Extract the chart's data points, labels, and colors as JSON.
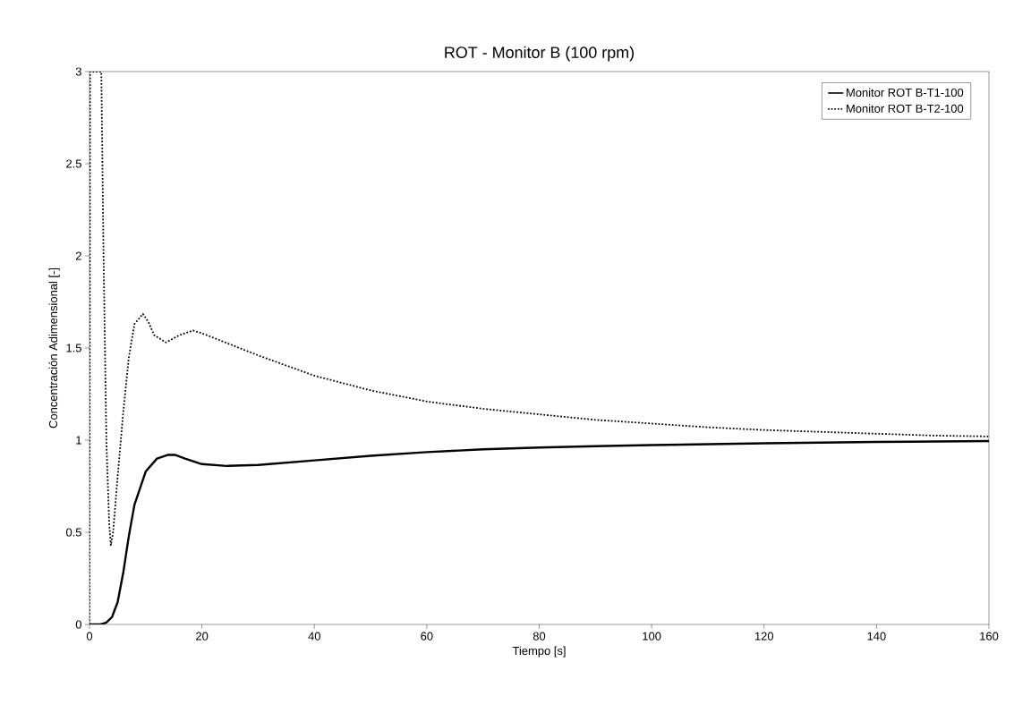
{
  "chart_data": {
    "type": "line",
    "title": "ROT - Monitor B (100 rpm)",
    "xlabel": "Tiempo [s]",
    "ylabel": "Concentración Adimensional [-]",
    "xlim": [
      0,
      160
    ],
    "ylim": [
      0,
      3
    ],
    "xticks": [
      0,
      20,
      40,
      60,
      80,
      100,
      120,
      140,
      160
    ],
    "yticks": [
      0,
      0.5,
      1,
      1.5,
      2,
      2.5,
      3
    ],
    "grid": false,
    "legend": "top right",
    "marker": "none",
    "series": [
      {
        "name": "Monitor ROT B-T1-100",
        "color": "#000000",
        "line_style": "solid",
        "x": [
          0,
          2,
          3,
          4,
          5,
          6,
          7,
          8,
          10,
          12,
          14,
          15.2,
          17,
          20,
          24.4,
          30,
          40,
          50,
          60,
          70,
          80,
          90,
          100,
          120,
          140,
          160
        ],
        "values": [
          0,
          0,
          0.01,
          0.04,
          0.12,
          0.28,
          0.48,
          0.65,
          0.83,
          0.9,
          0.92,
          0.92,
          0.9,
          0.87,
          0.86,
          0.865,
          0.89,
          0.915,
          0.935,
          0.95,
          0.96,
          0.967,
          0.973,
          0.983,
          0.99,
          0.995
        ]
      },
      {
        "name": "Monitor ROT B-T2-100",
        "color": "#000000",
        "line_style": "dotted",
        "x": [
          0,
          0.1,
          2.1,
          2.5,
          3,
          3.5,
          3.8,
          4.2,
          5,
          6,
          7,
          8,
          9.5,
          10.5,
          11.5,
          13.6,
          16,
          18.4,
          20,
          25,
          30,
          40,
          50,
          60,
          70,
          80,
          90,
          100,
          110,
          120,
          130,
          140,
          150,
          160
        ],
        "values": [
          0,
          3,
          3,
          2,
          1,
          0.55,
          0.43,
          0.5,
          0.8,
          1.15,
          1.45,
          1.63,
          1.685,
          1.64,
          1.57,
          1.53,
          1.57,
          1.595,
          1.58,
          1.52,
          1.46,
          1.35,
          1.27,
          1.21,
          1.17,
          1.14,
          1.11,
          1.09,
          1.07,
          1.055,
          1.045,
          1.035,
          1.025,
          1.02
        ]
      }
    ]
  }
}
